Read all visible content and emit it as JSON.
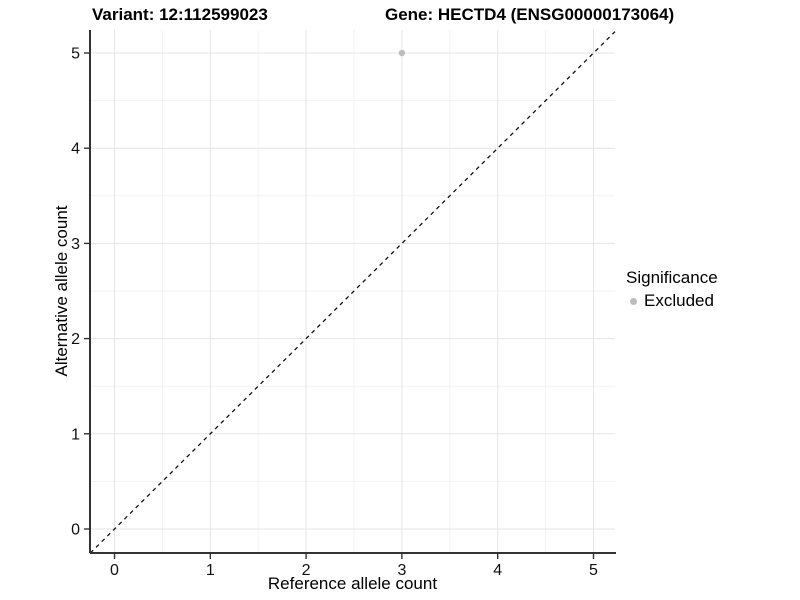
{
  "chart_data": {
    "type": "scatter",
    "title_left": "Variant: 12:112599023",
    "title_right": "Gene: HECTD4 (ENSG00000173064)",
    "xlabel": "Reference allele count",
    "ylabel": "Alternative allele count",
    "xlim": [
      -0.25,
      5.25
    ],
    "ylim": [
      -0.25,
      5.25
    ],
    "xticks": [
      0,
      1,
      2,
      3,
      4,
      5
    ],
    "yticks": [
      0,
      1,
      2,
      3,
      4,
      5
    ],
    "grid": "major+minor",
    "points": [
      {
        "x": 3,
        "y": 5,
        "significance": "Excluded"
      }
    ],
    "reference_line": {
      "slope": 1,
      "intercept": 0,
      "style": "dashed",
      "color": "#111111"
    },
    "legend": {
      "title": "Significance",
      "position": "right",
      "items": [
        {
          "label": "Excluded",
          "color": "#bdbdbd",
          "marker": "circle-icon"
        }
      ]
    },
    "colors": {
      "point": "#bdbdbd",
      "grid_major": "#e5e5e5",
      "grid_minor": "#f2f2f2",
      "axis_line": "#333333",
      "tick_text": "#111111",
      "background": "#ffffff"
    }
  }
}
